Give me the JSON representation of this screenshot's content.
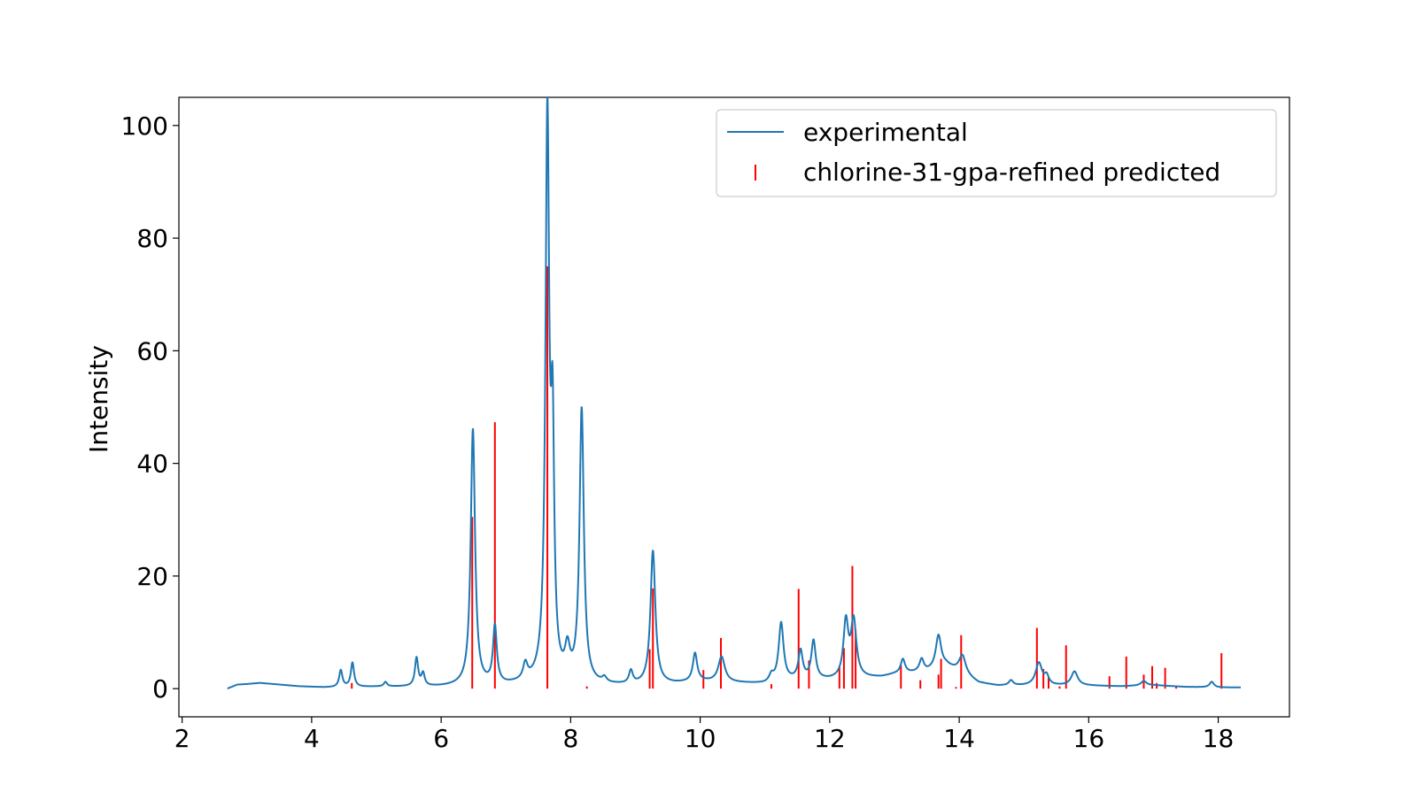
{
  "chart_data": {
    "type": "line",
    "title": "",
    "xlabel": "",
    "ylabel": "Intensity",
    "xlim": [
      1.95,
      19.1
    ],
    "ylim": [
      -5,
      105
    ],
    "xticks": [
      2,
      4,
      6,
      8,
      10,
      12,
      14,
      16,
      18
    ],
    "yticks": [
      0,
      20,
      40,
      60,
      80,
      100
    ],
    "grid": false,
    "legend_position": "top-right",
    "series": [
      {
        "name": "experimental",
        "kind": "line",
        "color": "#1f77b4",
        "baseline": [
          [
            2.7,
            0.0
          ],
          [
            2.85,
            0.7
          ],
          [
            3.0,
            0.8
          ],
          [
            3.2,
            1.0
          ],
          [
            3.4,
            0.8
          ],
          [
            3.6,
            0.6
          ],
          [
            3.8,
            0.4
          ],
          [
            4.0,
            0.3
          ],
          [
            4.2,
            0.2
          ],
          [
            4.4,
            0.2
          ],
          [
            5.0,
            0.3
          ],
          [
            5.5,
            0.3
          ],
          [
            6.0,
            0.3
          ],
          [
            6.3,
            0.4
          ],
          [
            7.0,
            0.5
          ],
          [
            7.5,
            1.0
          ],
          [
            8.5,
            0.5
          ],
          [
            9.0,
            0.5
          ],
          [
            9.6,
            0.8
          ],
          [
            10.0,
            1.2
          ],
          [
            10.5,
            1.0
          ],
          [
            11.0,
            0.8
          ],
          [
            11.5,
            1.5
          ],
          [
            12.0,
            1.5
          ],
          [
            12.5,
            1.8
          ],
          [
            12.8,
            2.0
          ],
          [
            13.0,
            2.5
          ],
          [
            13.5,
            3.0
          ],
          [
            13.8,
            4.0
          ],
          [
            14.0,
            3.0
          ],
          [
            14.3,
            1.0
          ],
          [
            14.6,
            0.5
          ],
          [
            15.0,
            0.5
          ],
          [
            15.5,
            0.5
          ],
          [
            16.0,
            0.5
          ],
          [
            16.5,
            0.4
          ],
          [
            17.0,
            0.6
          ],
          [
            17.5,
            0.3
          ],
          [
            18.0,
            0.2
          ],
          [
            18.35,
            0.2
          ]
        ],
        "peaks": [
          [
            4.45,
            3.0,
            0.03
          ],
          [
            4.63,
            4.3,
            0.03
          ],
          [
            5.14,
            0.8,
            0.03
          ],
          [
            5.62,
            5.0,
            0.03
          ],
          [
            5.72,
            2.2,
            0.03
          ],
          [
            6.49,
            45.5,
            0.04
          ],
          [
            6.83,
            10.2,
            0.035
          ],
          [
            7.3,
            2.8,
            0.04
          ],
          [
            7.64,
            99.0,
            0.035
          ],
          [
            7.72,
            40.0,
            0.03
          ],
          [
            7.95,
            5.0,
            0.045
          ],
          [
            8.17,
            48.5,
            0.04
          ],
          [
            8.52,
            0.9,
            0.04
          ],
          [
            8.93,
            2.3,
            0.035
          ],
          [
            9.27,
            23.7,
            0.045
          ],
          [
            9.92,
            5.0,
            0.04
          ],
          [
            10.33,
            4.5,
            0.06
          ],
          [
            11.1,
            1.2,
            0.04
          ],
          [
            11.25,
            10.4,
            0.045
          ],
          [
            11.55,
            5.0,
            0.04
          ],
          [
            11.75,
            6.8,
            0.04
          ],
          [
            12.25,
            9.8,
            0.045
          ],
          [
            12.37,
            10.0,
            0.05
          ],
          [
            13.13,
            2.5,
            0.04
          ],
          [
            13.42,
            2.2,
            0.04
          ],
          [
            13.68,
            5.8,
            0.05
          ],
          [
            14.05,
            3.2,
            0.06
          ],
          [
            14.8,
            0.9,
            0.04
          ],
          [
            15.23,
            4.0,
            0.06
          ],
          [
            15.35,
            1.5,
            0.04
          ],
          [
            15.78,
            2.5,
            0.06
          ],
          [
            16.85,
            0.8,
            0.05
          ],
          [
            17.9,
            1.0,
            0.04
          ]
        ]
      },
      {
        "name": "chlorine-31-gpa-refined predicted",
        "kind": "sticks",
        "color": "#ff0000",
        "points": [
          [
            4.62,
            1.0
          ],
          [
            6.48,
            30.5
          ],
          [
            6.83,
            47.3
          ],
          [
            7.64,
            75.0
          ],
          [
            8.25,
            0.4
          ],
          [
            9.22,
            7.0
          ],
          [
            9.27,
            17.8
          ],
          [
            10.05,
            3.3
          ],
          [
            10.32,
            9.0
          ],
          [
            11.1,
            0.8
          ],
          [
            11.52,
            17.7
          ],
          [
            11.68,
            5.0
          ],
          [
            12.15,
            4.0
          ],
          [
            12.22,
            7.2
          ],
          [
            12.35,
            21.8
          ],
          [
            12.4,
            10.5
          ],
          [
            13.1,
            4.2
          ],
          [
            13.4,
            1.5
          ],
          [
            13.68,
            2.5
          ],
          [
            13.72,
            5.3
          ],
          [
            13.95,
            0.3
          ],
          [
            14.03,
            9.5
          ],
          [
            15.2,
            10.8
          ],
          [
            15.3,
            3.5
          ],
          [
            15.38,
            2.0
          ],
          [
            15.55,
            0.4
          ],
          [
            15.65,
            7.7
          ],
          [
            16.32,
            2.2
          ],
          [
            16.58,
            5.7
          ],
          [
            16.85,
            2.5
          ],
          [
            16.98,
            4.0
          ],
          [
            17.05,
            1.0
          ],
          [
            17.18,
            3.7
          ],
          [
            17.35,
            0.5
          ],
          [
            18.05,
            6.3
          ]
        ]
      }
    ]
  }
}
